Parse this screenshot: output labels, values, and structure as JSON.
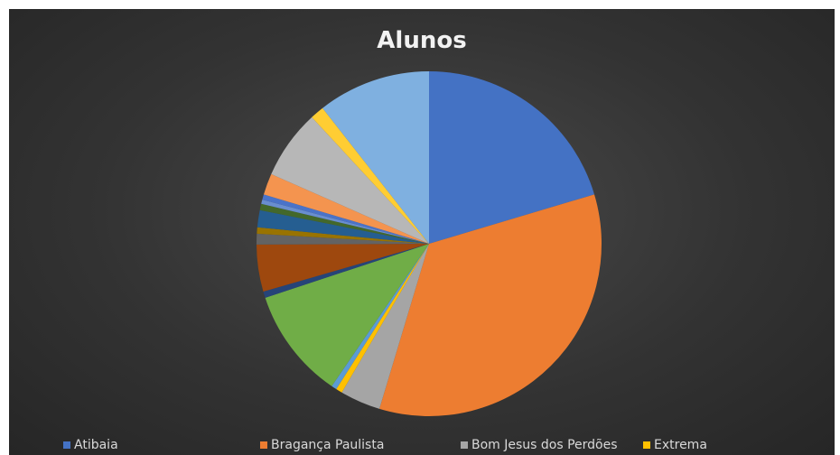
{
  "chart_data": {
    "type": "pie",
    "title": "Alunos",
    "slices": [
      {
        "value": 20.4,
        "color": "#4472c4"
      },
      {
        "value": 34.3,
        "color": "#ed7d31"
      },
      {
        "value": 3.8,
        "color": "#a5a5a5"
      },
      {
        "value": 0.6,
        "color": "#ffc000"
      },
      {
        "value": 0.5,
        "color": "#5b9bd5"
      },
      {
        "value": 10.4,
        "color": "#70ad47"
      },
      {
        "value": 0.6,
        "color": "#264478"
      },
      {
        "value": 4.4,
        "color": "#9e480e"
      },
      {
        "value": 1.0,
        "color": "#636363"
      },
      {
        "value": 0.6,
        "color": "#997300"
      },
      {
        "value": 1.6,
        "color": "#255e91"
      },
      {
        "value": 0.6,
        "color": "#43682b"
      },
      {
        "value": 0.4,
        "color": "#698ed0"
      },
      {
        "value": 0.5,
        "color": "#4a73c9"
      },
      {
        "value": 2.0,
        "color": "#f4944f"
      },
      {
        "value": 6.5,
        "color": "#b7b7b7"
      },
      {
        "value": 1.3,
        "color": "#ffcd33"
      },
      {
        "value": 10.6,
        "color": "#7fb0e0"
      }
    ],
    "legend": [
      {
        "label": "Atibaia",
        "color": "#4472c4"
      },
      {
        "label": "Bragança Paulista",
        "color": "#ed7d31"
      },
      {
        "label": "Bom Jesus dos Perdões",
        "color": "#a5a5a5"
      },
      {
        "label": "Extrema",
        "color": "#ffc000"
      }
    ],
    "legend_position": "bottom"
  }
}
